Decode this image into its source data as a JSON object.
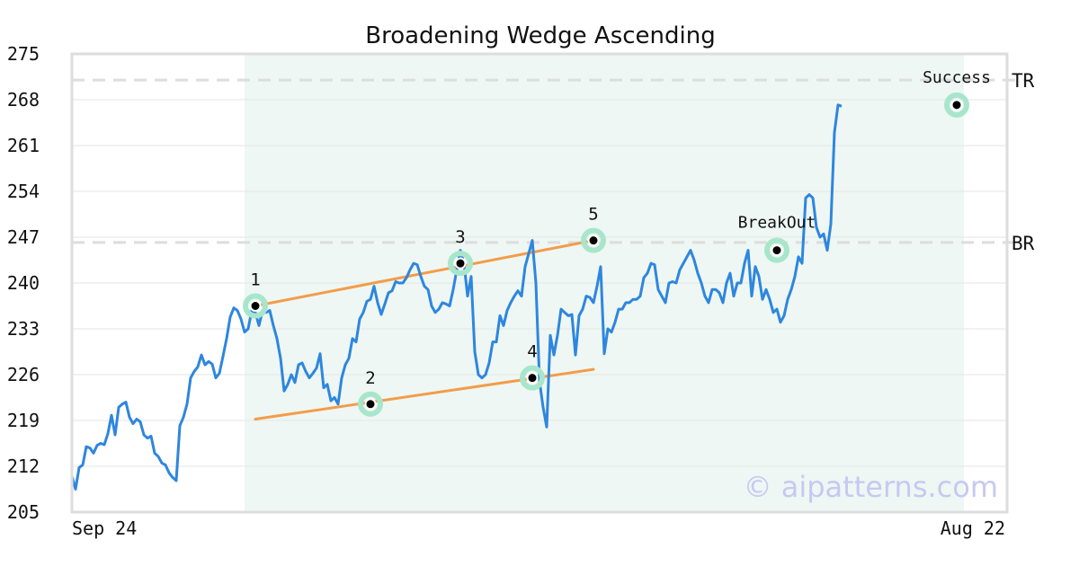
{
  "chart_data": {
    "type": "line",
    "title": "Broadening Wedge Ascending",
    "xlabel": "",
    "ylabel": "",
    "x_tick_labels": [
      "Sep 24",
      "Aug 22"
    ],
    "y_ticks": [
      205,
      212,
      219,
      226,
      233,
      240,
      247,
      254,
      261,
      268,
      275
    ],
    "ylim": [
      205,
      275
    ],
    "grid": "horizontal",
    "watermark": "© aipatterns.com",
    "colors": {
      "price": "#2e86de",
      "trendline": "#f39c4a",
      "pattern_bg": "#eef7f3",
      "marker_ring": "#a8e6cc",
      "levels": "#dddddd",
      "watermark": "#c8c8f2"
    },
    "series": [
      {
        "values": [
          210.5,
          208.5,
          211.8,
          212.2,
          215.0,
          214.8,
          214.0,
          215.2,
          215.5,
          215.3,
          217.0,
          219.8,
          216.8,
          221.0,
          221.5,
          221.8,
          219.5,
          218.5,
          219.2,
          218.8,
          216.8,
          216.3,
          216.6,
          214.0,
          213.5,
          212.5,
          212.2,
          211.0,
          210.3,
          209.8,
          218.2,
          219.5,
          221.5,
          225.5,
          226.5,
          227.2,
          229.0,
          227.5,
          228.0,
          227.6,
          225.5,
          226.2,
          228.8,
          231.5,
          234.8,
          236.2,
          235.8,
          234.5,
          232.5,
          233.0,
          235.8,
          235.5,
          233.5,
          235.8,
          235.5,
          235.8,
          233.5,
          231.5,
          228.5,
          223.5,
          224.5,
          226.0,
          224.8,
          227.5,
          227.8,
          226.5,
          225.5,
          226.2,
          227.0,
          229.2,
          224.0,
          224.5,
          222.0,
          222.5,
          221.5,
          225.5,
          227.5,
          228.5,
          231.5,
          231.0,
          234.5,
          235.5,
          237.2,
          237.5,
          239.5,
          237.0,
          235.2,
          236.8,
          238.5,
          238.8,
          240.2,
          240.0,
          240.0,
          240.8,
          242.0,
          243.0,
          242.8,
          241.0,
          239.5,
          239.0,
          236.5,
          235.5,
          236.0,
          237.0,
          236.8,
          236.5,
          239.0,
          242.0,
          245.0,
          243.0,
          238.0,
          241.0,
          229.5,
          226.0,
          225.5,
          226.0,
          227.8,
          231.0,
          231.0,
          235.0,
          233.5,
          235.8,
          237.0,
          238.0,
          238.8,
          238.0,
          242.5,
          244.5,
          246.5,
          240.0,
          225.0,
          221.0,
          218.0,
          232.0,
          229.0,
          232.0,
          236.0,
          235.5,
          235.0,
          235.2,
          229.0,
          235.0,
          236.0,
          238.0,
          237.8,
          237.0,
          239.5,
          242.5,
          229.2,
          233.0,
          232.5,
          234.0,
          236.0,
          236.0,
          237.0,
          237.0,
          237.5,
          237.5,
          238.0,
          240.8,
          241.5,
          243.0,
          242.8,
          239.0,
          238.0,
          237.0,
          240.0,
          240.2,
          240.0,
          242.0,
          243.0,
          244.0,
          245.0,
          243.5,
          241.5,
          240.0,
          238.0,
          237.0,
          239.0,
          239.0,
          238.5,
          237.0,
          240.0,
          241.5,
          238.0,
          240.0,
          240.0,
          243.0,
          245.0,
          238.0,
          242.5,
          241.0,
          237.5,
          239.0,
          237.5,
          235.5,
          236.0,
          234.0,
          235.0,
          237.5,
          239.0,
          241.0,
          244.0,
          243.0,
          253.0,
          253.5,
          253.0,
          248.5,
          247.0,
          247.5,
          245.0,
          249.0,
          263.0,
          267.2,
          267.0
        ]
      }
    ],
    "markers": [
      {
        "label": "1",
        "index": 51,
        "value": 236.5
      },
      {
        "label": "2",
        "index": 83,
        "value": 221.5
      },
      {
        "label": "3",
        "index": 108,
        "value": 243.0
      },
      {
        "label": "4",
        "index": 128,
        "value": 225.5
      },
      {
        "label": "5",
        "index": 145,
        "value": 246.5
      },
      {
        "label": "BreakOut",
        "index": 196,
        "value": 245.0
      },
      {
        "label": "Success",
        "index": 246,
        "value": 267.2
      }
    ],
    "trendlines": [
      {
        "start_index": 51,
        "start_value": 236.5,
        "end_index": 145,
        "end_value": 246.5
      },
      {
        "start_index": 51,
        "start_value": 219.2,
        "end_index": 145,
        "end_value": 226.8
      }
    ],
    "pattern_region": {
      "start_index": 48,
      "end_index": 246
    },
    "levels": [
      {
        "label": "TR",
        "value": 271.0
      },
      {
        "label": "BR",
        "value": 246.2
      }
    ]
  }
}
